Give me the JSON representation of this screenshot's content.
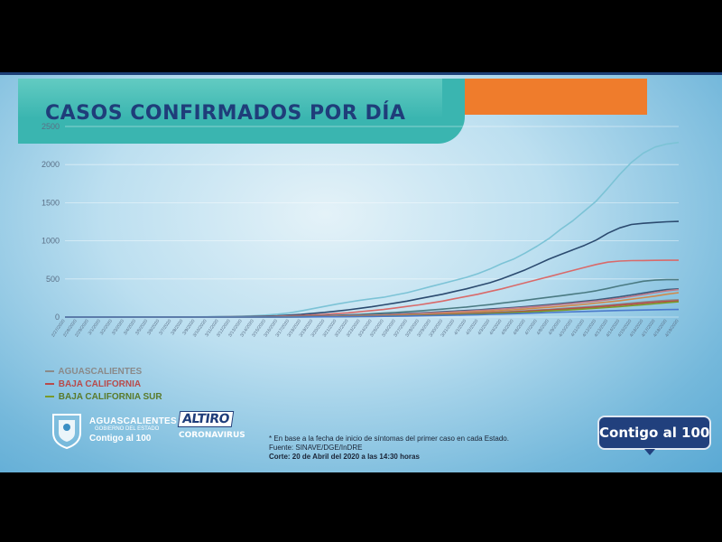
{
  "slide": {
    "title": "CASOS CONFIRMADOS POR DÍA",
    "legend": [
      {
        "label": "AGUASCALIENTES",
        "color": "#8a8a8a"
      },
      {
        "label": "BAJA CALIFORNIA",
        "color": "#b84a4a"
      },
      {
        "label": "BAJA CALIFORNIA SUR",
        "color": "#7a9a2a"
      }
    ],
    "footer": {
      "ags_name": "AGUASCALIENTES",
      "ags_gob": "GOBIERNO DEL ESTADO",
      "ags_contigo": "Contigo al 100",
      "altiro_top": "ALTIRO",
      "altiro_bottom": "CORONAVIRUS",
      "note_1": "* En base a la fecha de inicio de síntomas del primer caso en cada Estado.",
      "note_2": "Fuente: SINAVE/DGE/InDRE",
      "note_3": "Corte: 20 de Abril del 2020 a las 14:30 horas",
      "badge": "Contigo al 100"
    }
  },
  "chart_data": {
    "type": "line",
    "title": "CASOS CONFIRMADOS POR DÍA",
    "ylim": [
      0,
      2500
    ],
    "yticks": [
      0,
      500,
      1000,
      1500,
      2000,
      2500
    ],
    "grid": true,
    "legend_position": "bottom-left",
    "categories": [
      "2/27/2020",
      "2/28/2020",
      "2/29/2020",
      "3/1/2020",
      "3/2/2020",
      "3/3/2020",
      "3/4/2020",
      "3/5/2020",
      "3/6/2020",
      "3/7/2020",
      "3/8/2020",
      "3/9/2020",
      "3/10/2020",
      "3/11/2020",
      "3/12/2020",
      "3/13/2020",
      "3/14/2020",
      "3/15/2020",
      "3/16/2020",
      "3/17/2020",
      "3/18/2020",
      "3/19/2020",
      "3/20/2020",
      "3/21/2020",
      "3/22/2020",
      "3/23/2020",
      "3/24/2020",
      "3/25/2020",
      "3/26/2020",
      "3/27/2020",
      "3/28/2020",
      "3/29/2020",
      "3/30/2020",
      "3/31/2020",
      "4/1/2020",
      "4/2/2020",
      "4/3/2020",
      "4/4/2020",
      "4/5/2020",
      "4/6/2020",
      "4/7/2020",
      "4/8/2020",
      "4/9/2020",
      "4/10/2020",
      "4/11/2020",
      "4/12/2020",
      "4/13/2020",
      "4/14/2020",
      "4/15/2020",
      "4/16/2020",
      "4/17/2020",
      "4/18/2020",
      "4/19/2020"
    ],
    "series": [
      {
        "color": "#7cc3d6",
        "values": [
          0,
          0,
          0,
          0,
          0,
          0,
          0,
          0,
          0,
          0,
          1,
          2,
          3,
          5,
          8,
          12,
          18,
          26,
          38,
          55,
          80,
          110,
          140,
          170,
          195,
          220,
          240,
          260,
          290,
          320,
          360,
          400,
          440,
          480,
          520,
          570,
          630,
          700,
          760,
          840,
          930,
          1030,
          1150,
          1260,
          1390,
          1520,
          1690,
          1870,
          2030,
          2150,
          2230,
          2270,
          2290
        ]
      },
      {
        "color": "#2b4a6f",
        "values": [
          0,
          0,
          0,
          0,
          0,
          0,
          0,
          0,
          0,
          0,
          0,
          1,
          2,
          3,
          4,
          6,
          9,
          13,
          18,
          26,
          35,
          48,
          62,
          78,
          95,
          115,
          135,
          160,
          185,
          210,
          240,
          270,
          300,
          335,
          370,
          410,
          450,
          500,
          560,
          620,
          690,
          760,
          820,
          880,
          940,
          1010,
          1100,
          1170,
          1215,
          1230,
          1240,
          1250,
          1255
        ]
      },
      {
        "color": "#d96a6a",
        "values": [
          0,
          0,
          0,
          0,
          0,
          0,
          0,
          0,
          0,
          0,
          0,
          0,
          1,
          2,
          3,
          4,
          6,
          8,
          11,
          15,
          20,
          27,
          35,
          45,
          56,
          70,
          85,
          100,
          120,
          140,
          160,
          185,
          210,
          240,
          270,
          300,
          335,
          370,
          410,
          450,
          490,
          530,
          570,
          610,
          650,
          690,
          720,
          735,
          740,
          742,
          744,
          745,
          745
        ]
      },
      {
        "color": "#4a7a82",
        "values": [
          0,
          0,
          0,
          0,
          0,
          0,
          0,
          0,
          0,
          0,
          0,
          0,
          0,
          1,
          2,
          3,
          4,
          5,
          7,
          9,
          12,
          15,
          19,
          24,
          30,
          36,
          44,
          52,
          60,
          70,
          80,
          92,
          104,
          118,
          132,
          148,
          164,
          182,
          200,
          220,
          240,
          260,
          280,
          300,
          320,
          345,
          375,
          410,
          440,
          470,
          485,
          490,
          490
        ]
      },
      {
        "color": "#3a5a7a",
        "values": [
          0,
          0,
          0,
          0,
          0,
          0,
          0,
          0,
          0,
          0,
          0,
          0,
          0,
          0,
          1,
          2,
          3,
          4,
          5,
          7,
          9,
          11,
          14,
          17,
          21,
          25,
          30,
          36,
          42,
          48,
          55,
          62,
          70,
          78,
          86,
          95,
          105,
          115,
          126,
          138,
          150,
          163,
          177,
          192,
          208,
          225,
          245,
          265,
          290,
          315,
          340,
          360,
          370
        ]
      },
      {
        "color": "#c07a8a",
        "values": [
          0,
          0,
          0,
          0,
          0,
          0,
          0,
          0,
          0,
          0,
          0,
          0,
          0,
          0,
          0,
          1,
          2,
          3,
          4,
          5,
          7,
          9,
          11,
          14,
          17,
          21,
          25,
          30,
          35,
          41,
          47,
          54,
          61,
          69,
          77,
          86,
          95,
          105,
          116,
          127,
          139,
          152,
          165,
          179,
          194,
          210,
          228,
          248,
          270,
          295,
          320,
          345,
          360
        ]
      },
      {
        "color": "#d08a4a",
        "values": [
          0,
          0,
          0,
          0,
          0,
          0,
          0,
          0,
          0,
          0,
          0,
          0,
          0,
          0,
          0,
          0,
          1,
          2,
          3,
          4,
          5,
          6,
          8,
          10,
          12,
          15,
          18,
          22,
          26,
          31,
          36,
          42,
          48,
          55,
          62,
          70,
          78,
          87,
          96,
          106,
          117,
          128,
          140,
          153,
          167,
          182,
          198,
          215,
          235,
          255,
          275,
          300,
          320
        ]
      },
      {
        "color": "#8a8a8a",
        "values": [
          0,
          0,
          0,
          0,
          0,
          0,
          0,
          0,
          0,
          0,
          0,
          0,
          0,
          0,
          0,
          0,
          0,
          1,
          2,
          3,
          4,
          5,
          6,
          8,
          10,
          12,
          14,
          17,
          20,
          24,
          28,
          32,
          37,
          42,
          48,
          54,
          60,
          67,
          75,
          83,
          92,
          101,
          111,
          122,
          133,
          145,
          158,
          172,
          185,
          198,
          210,
          220,
          228
        ]
      },
      {
        "color": "#b84a4a",
        "values": [
          0,
          0,
          0,
          0,
          0,
          0,
          0,
          0,
          0,
          0,
          0,
          0,
          0,
          0,
          0,
          0,
          0,
          0,
          1,
          2,
          3,
          4,
          5,
          6,
          8,
          10,
          12,
          14,
          17,
          20,
          24,
          28,
          32,
          37,
          42,
          48,
          54,
          61,
          68,
          76,
          84,
          93,
          102,
          112,
          122,
          133,
          145,
          157,
          170,
          183,
          195,
          205,
          212
        ]
      },
      {
        "color": "#7a9a2a",
        "values": [
          0,
          0,
          0,
          0,
          0,
          0,
          0,
          0,
          0,
          0,
          0,
          0,
          0,
          0,
          0,
          0,
          0,
          0,
          0,
          1,
          2,
          3,
          4,
          5,
          6,
          8,
          10,
          12,
          14,
          17,
          20,
          23,
          27,
          31,
          36,
          41,
          46,
          52,
          58,
          65,
          72,
          80,
          88,
          97,
          106,
          116,
          127,
          138,
          150,
          162,
          175,
          188,
          200
        ]
      },
      {
        "color": "#4a7acb",
        "values": [
          0,
          0,
          0,
          0,
          0,
          0,
          0,
          0,
          0,
          0,
          0,
          0,
          0,
          0,
          0,
          0,
          0,
          0,
          0,
          0,
          1,
          2,
          3,
          4,
          5,
          6,
          7,
          9,
          11,
          13,
          15,
          18,
          21,
          24,
          27,
          31,
          35,
          39,
          44,
          49,
          54,
          59,
          64,
          69,
          74,
          78,
          82,
          86,
          90,
          93,
          96,
          98,
          100
        ]
      }
    ]
  }
}
